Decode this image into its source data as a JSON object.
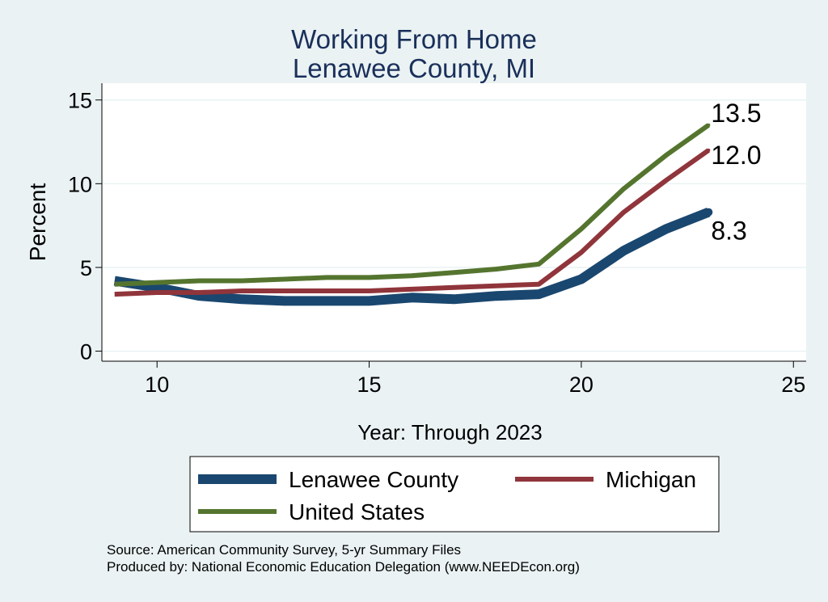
{
  "chart_data": {
    "type": "line",
    "title": [
      "Working From Home",
      "Lenawee County, MI"
    ],
    "xlabel": "Year: Through 2023",
    "ylabel": "Percent",
    "xlim": [
      8.7,
      25.3
    ],
    "ylim": [
      -0.6,
      16
    ],
    "xticks": [
      10,
      15,
      20,
      25
    ],
    "yticks": [
      0,
      5,
      10,
      15
    ],
    "grid": true,
    "legend_position": "bottom",
    "x": [
      9,
      10,
      11,
      12,
      13,
      14,
      15,
      16,
      17,
      18,
      19,
      20,
      21,
      22,
      23
    ],
    "series": [
      {
        "name": "Lenawee County",
        "color": "#1a476f",
        "values": [
          4.2,
          3.8,
          3.3,
          3.1,
          3.0,
          3.0,
          3.0,
          3.2,
          3.1,
          3.3,
          3.4,
          4.3,
          6.0,
          7.3,
          8.3
        ],
        "end_label": "8.3"
      },
      {
        "name": "Michigan",
        "color": "#90353b",
        "values": [
          3.4,
          3.5,
          3.5,
          3.6,
          3.6,
          3.6,
          3.6,
          3.7,
          3.8,
          3.9,
          4.0,
          5.9,
          8.3,
          10.2,
          12.0
        ],
        "end_label": "12.0"
      },
      {
        "name": "United States",
        "color": "#55752f",
        "values": [
          4.0,
          4.1,
          4.2,
          4.2,
          4.3,
          4.4,
          4.4,
          4.5,
          4.7,
          4.9,
          5.2,
          7.3,
          9.7,
          11.7,
          13.5
        ],
        "end_label": "13.5"
      }
    ]
  },
  "footnotes": [
    "Source: American Community Survey, 5-yr Summary Files",
    "Produced by: National Economic Education Delegation (www.NEEDEcon.org)"
  ]
}
